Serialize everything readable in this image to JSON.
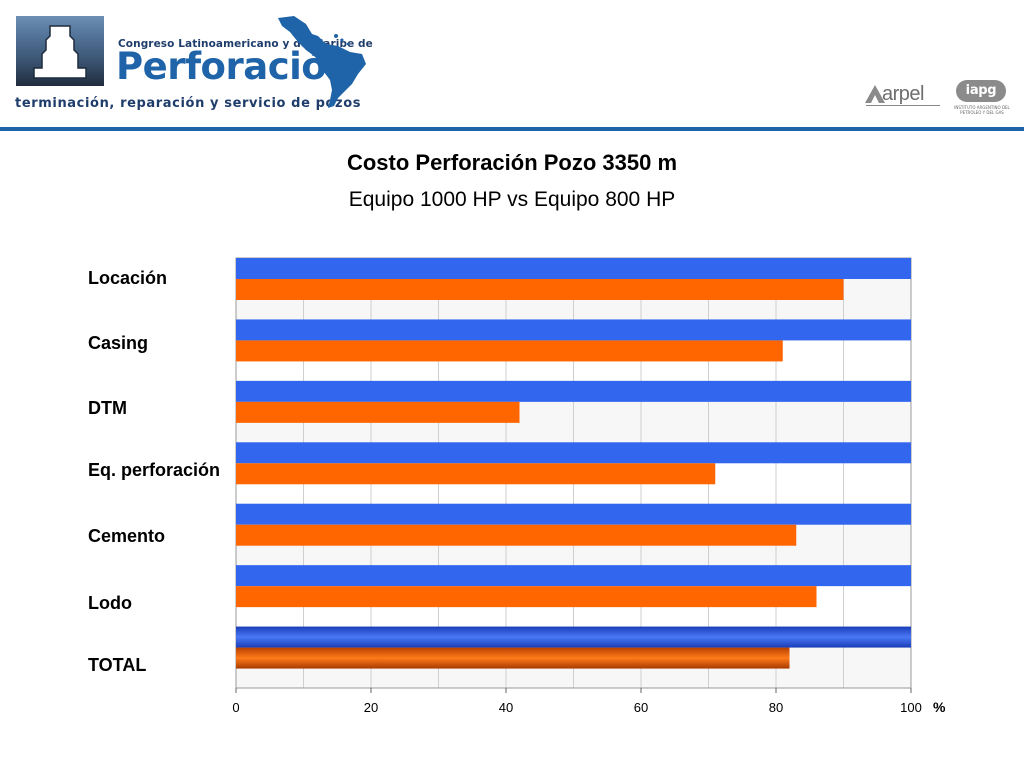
{
  "header": {
    "congreso": "Congreso Latinoamericano y del Caribe de",
    "perforacion": "Perforación",
    "tagline": "terminación, reparación y servicio de pozos",
    "arpel_logo": "arpel",
    "iapg_logo": "iapg",
    "iapg_sub": "INSTITUTO ARGENTINO DEL PETROLEO Y DEL GAS",
    "rule_color": "#1f64a8"
  },
  "chart_data": {
    "type": "bar",
    "orientation": "horizontal",
    "title": "Costo Perforación Pozo 3350 m",
    "subtitle": "Equipo 1000 HP vs Equipo 800 HP",
    "categories": [
      "Locación",
      "Casing",
      "DTM",
      "Eq. perforación",
      "Cemento",
      "Lodo",
      "TOTAL"
    ],
    "series": [
      {
        "color": "#3366ee",
        "values": [
          100,
          100,
          100,
          100,
          100,
          100,
          100
        ]
      },
      {
        "color": "#ff6600",
        "values": [
          90,
          81,
          42,
          71,
          83,
          86,
          82
        ]
      }
    ],
    "xlim": [
      0,
      100
    ],
    "xticks": [
      "0",
      "20",
      "40",
      "60",
      "80",
      "100"
    ],
    "xunit": "%",
    "grid": true,
    "legend": "none"
  }
}
